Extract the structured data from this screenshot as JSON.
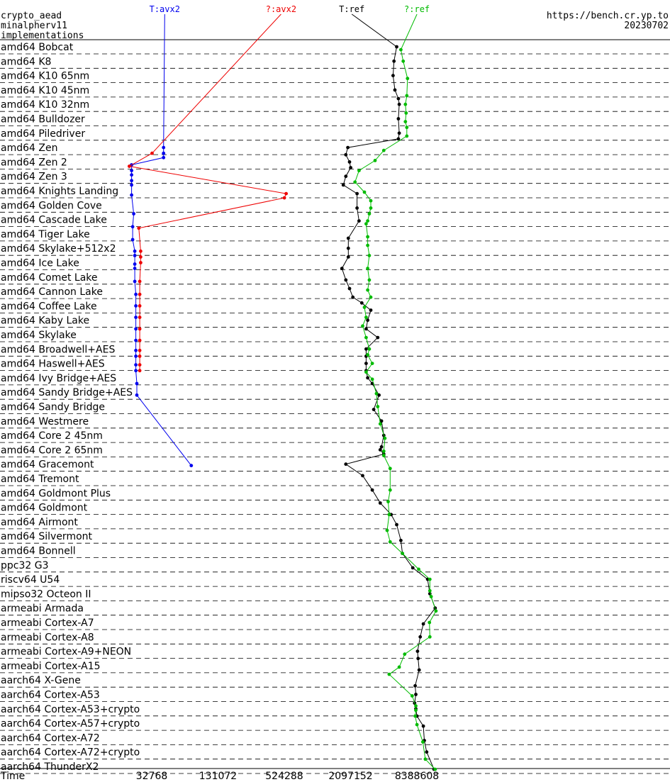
{
  "header": {
    "left_lines": [
      "crypto_aead",
      "minalpherv11",
      "implementations"
    ],
    "right_lines": [
      "https://bench.cr.yp.to",
      "20230702"
    ]
  },
  "chart_data": {
    "type": "line",
    "xlabel": "Time",
    "x_scale": "log",
    "x_ticks": [
      "32768",
      "131072",
      "524288",
      "2097152",
      "8388608"
    ],
    "x_tick_values": [
      32768,
      131072,
      524288,
      2097152,
      8388608
    ],
    "categories": [
      "amd64 Bobcat",
      "amd64 K8",
      "amd64 K10 65nm",
      "amd64 K10 45nm",
      "amd64 K10 32nm",
      "amd64 Bulldozer",
      "amd64 Piledriver",
      "amd64 Zen",
      "amd64 Zen 2",
      "amd64 Zen 3",
      "amd64 Knights Landing",
      "amd64 Golden Cove",
      "amd64 Cascade Lake",
      "amd64 Tiger Lake",
      "amd64 Skylake+512x2",
      "amd64 Ice Lake",
      "amd64 Comet Lake",
      "amd64 Cannon Lake",
      "amd64 Coffee Lake",
      "amd64 Kaby Lake",
      "amd64 Skylake",
      "amd64 Broadwell+AES",
      "amd64 Haswell+AES",
      "amd64 Ivy Bridge+AES",
      "amd64 Sandy Bridge+AES",
      "amd64 Sandy Bridge",
      "amd64 Westmere",
      "amd64 Core 2 45nm",
      "amd64 Core 2 65nm",
      "amd64 Gracemont",
      "amd64 Tremont",
      "amd64 Goldmont Plus",
      "amd64 Goldmont",
      "amd64 Airmont",
      "amd64 Silvermont",
      "amd64 Bonnell",
      "ppc32 G3",
      "riscv64 U54",
      "mipso32 Octeon II",
      "armeabi Armada",
      "armeabi Cortex-A7",
      "armeabi Cortex-A8",
      "armeabi Cortex-A9+NEON",
      "armeabi Cortex-A15",
      "aarch64 X-Gene",
      "aarch64 Cortex-A53",
      "aarch64 Cortex-A53+crypto",
      "aarch64 Cortex-A57+crypto",
      "aarch64 Cortex-A72",
      "aarch64 Cortex-A72+crypto",
      "aarch64 ThunderX2"
    ],
    "series": [
      {
        "name": "T:avx2",
        "color": "#0000ee",
        "points": [
          [
            7,
            42000
          ],
          [
            7.4,
            42000
          ],
          [
            7.7,
            42000
          ],
          [
            8.2,
            21500
          ],
          [
            8.6,
            21500
          ],
          [
            8.9,
            21500
          ],
          [
            9.3,
            21500
          ],
          [
            9.6,
            21500
          ],
          [
            10.3,
            21500
          ],
          [
            11.6,
            22500
          ],
          [
            12.5,
            22000
          ],
          [
            13.4,
            22000
          ],
          [
            14.2,
            23000
          ],
          [
            14.5,
            23000
          ],
          [
            15.1,
            23000
          ],
          [
            15.4,
            23000
          ],
          [
            16.3,
            23000
          ],
          [
            17.2,
            23500
          ],
          [
            18,
            23500
          ],
          [
            18.8,
            23500
          ],
          [
            19.6,
            23500
          ],
          [
            20.4,
            23500
          ],
          [
            21.1,
            23500
          ],
          [
            21.5,
            23500
          ],
          [
            22.1,
            23500
          ],
          [
            22.5,
            23500
          ],
          [
            23.4,
            24000
          ],
          [
            24.2,
            24000
          ],
          [
            29.1,
            75000
          ]
        ]
      },
      {
        "name": "?:avx2",
        "color": "#ee0000",
        "points": [
          [
            7.4,
            33000
          ],
          [
            8.3,
            20500
          ],
          [
            10.2,
            545000
          ],
          [
            10.5,
            525000
          ],
          [
            12.6,
            25000
          ],
          [
            14.2,
            26000
          ],
          [
            14.6,
            26000
          ],
          [
            15,
            26000
          ],
          [
            16.3,
            25500
          ],
          [
            17.2,
            25500
          ],
          [
            18,
            25500
          ],
          [
            18.8,
            25500
          ],
          [
            19.6,
            25500
          ],
          [
            20.4,
            25500
          ],
          [
            21.1,
            25500
          ],
          [
            21.5,
            25500
          ],
          [
            22.1,
            25500
          ],
          [
            22.5,
            25500
          ]
        ]
      },
      {
        "name": "T:ref",
        "color": "#000000",
        "points": [
          [
            0,
            5500000
          ],
          [
            1,
            5200000
          ],
          [
            2,
            5100000
          ],
          [
            3,
            5300000
          ],
          [
            3.6,
            5700000
          ],
          [
            4,
            5800000
          ],
          [
            5,
            5700000
          ],
          [
            6,
            5800000
          ],
          [
            6.4,
            5700000
          ],
          [
            7,
            1980000
          ],
          [
            7.5,
            1900000
          ],
          [
            8,
            2050000
          ],
          [
            8.4,
            2100000
          ],
          [
            9,
            1900000
          ],
          [
            9.6,
            1800000
          ],
          [
            10.2,
            2400000
          ],
          [
            11.2,
            2400000
          ],
          [
            12.1,
            2500000
          ],
          [
            13.3,
            2000000
          ],
          [
            14,
            2000000
          ],
          [
            14.6,
            2000000
          ],
          [
            15.4,
            1750000
          ],
          [
            16.2,
            1900000
          ],
          [
            16.8,
            2050000
          ],
          [
            17.4,
            2200000
          ],
          [
            17.8,
            2650000
          ],
          [
            18.3,
            3200000
          ],
          [
            19,
            3000000
          ],
          [
            19.6,
            2900000
          ],
          [
            20.2,
            3700000
          ],
          [
            21,
            2900000
          ],
          [
            21.5,
            2900000
          ],
          [
            22,
            2900000
          ],
          [
            22.5,
            2900000
          ],
          [
            23,
            3000000
          ],
          [
            23.4,
            3300000
          ],
          [
            24.2,
            3800000
          ],
          [
            25.2,
            3400000
          ],
          [
            26,
            4000000
          ],
          [
            27,
            4200000
          ],
          [
            27.8,
            4000000
          ],
          [
            28,
            3900000
          ],
          [
            28.3,
            4200000
          ],
          [
            29,
            1900000
          ],
          [
            29.8,
            2700000
          ],
          [
            30.8,
            3300000
          ],
          [
            31.7,
            3900000
          ],
          [
            32.5,
            4900000
          ],
          [
            33.2,
            5500000
          ],
          [
            34.3,
            6000000
          ],
          [
            35.2,
            6200000
          ],
          [
            36.2,
            7700000
          ],
          [
            37,
            10500000
          ],
          [
            38,
            11000000
          ],
          [
            39,
            12300000
          ],
          [
            40.1,
            9600000
          ],
          [
            41,
            9000000
          ],
          [
            42,
            8500000
          ],
          [
            42.5,
            8600000
          ],
          [
            43.3,
            8800000
          ],
          [
            44.4,
            8100000
          ],
          [
            45,
            8200000
          ],
          [
            45.6,
            8000000
          ],
          [
            46,
            8200000
          ],
          [
            46.5,
            8400000
          ],
          [
            47.2,
            9600000
          ],
          [
            48.2,
            9800000
          ],
          [
            49,
            10300000
          ],
          [
            50.2,
            12000000
          ]
        ]
      },
      {
        "name": "?:ref",
        "color": "#00bb00",
        "points": [
          [
            0.2,
            6000000
          ],
          [
            1,
            6300000
          ],
          [
            2.2,
            6900000
          ],
          [
            3.4,
            6800000
          ],
          [
            4,
            6600000
          ],
          [
            4.6,
            6700000
          ],
          [
            5.2,
            6600000
          ],
          [
            5.6,
            6800000
          ],
          [
            6.2,
            6800000
          ],
          [
            7.2,
            4200000
          ],
          [
            7.9,
            3500000
          ],
          [
            8.6,
            2500000
          ],
          [
            9.4,
            2300000
          ],
          [
            10.1,
            2800000
          ],
          [
            10.7,
            3200000
          ],
          [
            11.2,
            3200000
          ],
          [
            11.6,
            3100000
          ],
          [
            12.1,
            3000000
          ],
          [
            12.3,
            2900000
          ],
          [
            13.2,
            3000000
          ],
          [
            13.8,
            3000000
          ],
          [
            14.5,
            3100000
          ],
          [
            15.4,
            3000000
          ],
          [
            16.2,
            3100000
          ],
          [
            16.9,
            3000000
          ],
          [
            17.4,
            3200000
          ],
          [
            18.1,
            2800000
          ],
          [
            18.8,
            2900000
          ],
          [
            19.4,
            2700000
          ],
          [
            20.2,
            2900000
          ],
          [
            21,
            3100000
          ],
          [
            21.4,
            3000000
          ],
          [
            22,
            3300000
          ],
          [
            22.6,
            2900000
          ],
          [
            23.1,
            3300000
          ],
          [
            24.1,
            3600000
          ],
          [
            25,
            3700000
          ],
          [
            26.2,
            3900000
          ],
          [
            27.2,
            4300000
          ],
          [
            28.1,
            4200000
          ],
          [
            28.4,
            4200000
          ],
          [
            29.3,
            4800000
          ],
          [
            30.8,
            4800000
          ],
          [
            31.6,
            4600000
          ],
          [
            32.5,
            4700000
          ],
          [
            33.6,
            4500000
          ],
          [
            34.4,
            4800000
          ],
          [
            35.2,
            6200000
          ],
          [
            36.3,
            8700000
          ],
          [
            37,
            11000000
          ],
          [
            37.8,
            11000000
          ],
          [
            38.2,
            11300000
          ],
          [
            39.2,
            12500000
          ],
          [
            40,
            10900000
          ],
          [
            41,
            11000000
          ],
          [
            42.2,
            6500000
          ],
          [
            43.1,
            5800000
          ],
          [
            43.6,
            4700000
          ],
          [
            45.1,
            7600000
          ],
          [
            45.8,
            8200000
          ],
          [
            46.1,
            8200000
          ],
          [
            46.5,
            8100000
          ],
          [
            47.1,
            8400000
          ],
          [
            48.3,
            9500000
          ],
          [
            49.5,
            10000000
          ],
          [
            50.2,
            12300000
          ]
        ]
      }
    ],
    "series_labels": [
      {
        "name": "T:avx2",
        "x": 43000
      },
      {
        "name": "?:avx2",
        "x": 490000
      },
      {
        "name": "T:ref",
        "x": 2150000
      },
      {
        "name": "?:ref",
        "x": 8400000
      }
    ],
    "legend": "none",
    "grid": "dashed horizontal row separators"
  }
}
